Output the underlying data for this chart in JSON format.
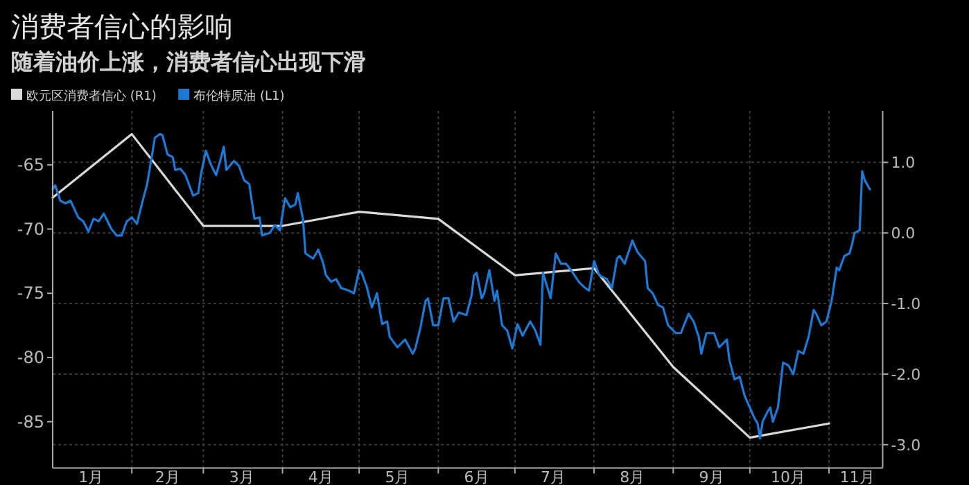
{
  "chart_data": {
    "type": "line",
    "title": "消费者信心的影响",
    "subtitle": "随着油价上涨，消费者信心出现下滑",
    "legend": "top left",
    "grid": true,
    "marker": "none",
    "line_style": "solid",
    "xlim": [
      "--01-01",
      "--11-22"
    ],
    "xticks": [
      {
        "value": "--02-01",
        "label": null
      },
      {
        "value": "--03-01",
        "label": null
      },
      {
        "value": "--04-01",
        "label": null
      },
      {
        "value": "--05-01",
        "label": null
      },
      {
        "value": "--06-01",
        "label": null
      },
      {
        "value": "--07-01",
        "label": null
      },
      {
        "value": "--08-01",
        "label": null
      },
      {
        "value": "--09-01",
        "label": null
      },
      {
        "value": "--10-01",
        "label": null
      },
      {
        "value": "--11-01",
        "label": null
      },
      {
        "value": "--01-16",
        "label": "1月"
      },
      {
        "value": "--02-15",
        "label": "2月"
      },
      {
        "value": "--03-16",
        "label": "3月"
      },
      {
        "value": "--04-16",
        "label": "4月"
      },
      {
        "value": "--05-16",
        "label": "5月"
      },
      {
        "value": "--06-16",
        "label": "6月"
      },
      {
        "value": "--07-16",
        "label": "7月"
      },
      {
        "value": "--08-16",
        "label": "8月"
      },
      {
        "value": "--09-16",
        "label": "9月"
      },
      {
        "value": "--10-16",
        "label": "10月"
      },
      {
        "value": "--11-12",
        "label": "11月"
      }
    ],
    "ylim": [
      -88.6,
      -60.8
    ],
    "yticks": [
      -65,
      -70,
      -75,
      -80,
      -85
    ],
    "y2lim": [
      -3.33,
      1.73
    ],
    "y2ticks": [
      {
        "value": 1,
        "label": "1.0"
      },
      {
        "value": 0,
        "label": "0.0"
      },
      {
        "value": -1,
        "label": "-1.0"
      },
      {
        "value": -2,
        "label": "-2.0"
      },
      {
        "value": -3,
        "label": "-3.0"
      }
    ],
    "series": [
      {
        "name": "欧元区消费者信心 (R1)",
        "color": "#d9d9d9",
        "axis": "y2",
        "x": [
          "--01-01",
          "--02-01",
          "--03-01",
          "--04-01",
          "--05-01",
          "--06-01",
          "--07-01",
          "--08-01",
          "--09-01",
          "--10-01",
          "--11-01"
        ],
        "values": [
          0.5,
          1.4,
          0.1,
          0.1,
          0.3,
          0.2,
          -0.6,
          -0.5,
          -1.9,
          -2.9,
          -2.7
        ]
      },
      {
        "name": "布伦特原油 (L1)",
        "color": "#1f78d1",
        "axis": "y",
        "x": [
          "--01-01",
          "--01-02",
          "--01-04",
          "--01-06",
          "--01-08",
          "--01-11",
          "--01-13",
          "--01-15",
          "--01-17",
          "--01-19",
          "--01-21",
          "--01-24",
          "--01-26",
          "--01-28",
          "--01-30",
          "--02-01",
          "--02-03",
          "--02-05",
          "--02-07",
          "--02-10",
          "--02-12",
          "--02-13",
          "--02-15",
          "--02-17",
          "--02-18",
          "--02-20",
          "--02-22",
          "--02-25",
          "--02-27",
          "--02-28",
          "--03-02",
          "--03-04",
          "--03-06",
          "--03-08",
          "--03-09",
          "--03-10",
          "--03-13",
          "--03-15",
          "--03-17",
          "--03-19",
          "--03-21",
          "--03-23",
          "--03-24",
          "--03-27",
          "--03-29",
          "--03-31",
          "--04-02",
          "--04-04",
          "--04-06",
          "--04-07",
          "--04-09",
          "--04-10",
          "--04-13",
          "--04-15",
          "--04-17",
          "--04-18",
          "--04-20",
          "--04-22",
          "--04-24",
          "--04-27",
          "--04-29",
          "--05-01",
          "--05-02",
          "--05-04",
          "--05-06",
          "--05-08",
          "--05-10",
          "--05-12",
          "--05-13",
          "--05-16",
          "--05-19",
          "--05-22",
          "--05-23",
          "--05-25",
          "--05-27",
          "--05-28",
          "--05-30",
          "--06-01",
          "--06-03",
          "--06-05",
          "--06-07",
          "--06-09",
          "--06-12",
          "--06-14",
          "--06-15",
          "--06-16",
          "--06-18",
          "--06-19",
          "--06-21",
          "--06-23",
          "--06-24",
          "--06-26",
          "--06-28",
          "--06-30",
          "--07-02",
          "--07-04",
          "--07-07",
          "--07-09",
          "--07-11",
          "--07-12",
          "--07-15",
          "--07-17",
          "--07-19",
          "--07-21",
          "--07-23",
          "--07-26",
          "--07-28",
          "--07-30",
          "--08-01",
          "--08-03",
          "--08-06",
          "--08-08",
          "--08-10",
          "--08-11",
          "--08-13",
          "--08-16",
          "--08-18",
          "--08-21",
          "--08-22",
          "--08-24",
          "--08-26",
          "--08-28",
          "--08-30",
          "--09-02",
          "--09-04",
          "--09-07",
          "--09-09",
          "--09-11",
          "--09-12",
          "--09-14",
          "--09-17",
          "--09-19",
          "--09-22",
          "--09-23",
          "--09-25",
          "--09-27",
          "--09-29",
          "--10-01",
          "--10-03",
          "--10-04",
          "--10-05",
          "--10-06",
          "--10-08",
          "--10-09",
          "--10-10",
          "--10-12",
          "--10-14",
          "--10-16",
          "--10-18",
          "--10-20",
          "--10-22",
          "--10-24",
          "--10-26",
          "--10-27",
          "--10-29",
          "--10-31",
          "--11-02",
          "--11-04",
          "--11-05",
          "--11-07",
          "--11-09",
          "--11-10",
          "--11-11",
          "--11-13",
          "--11-14",
          "--11-15",
          "--11-17"
        ],
        "values": [
          -66.9,
          -66.6,
          -67.8,
          -68.0,
          -67.8,
          -69.1,
          -69.4,
          -70.2,
          -69.2,
          -69.4,
          -68.8,
          -70.0,
          -70.5,
          -70.5,
          -69.4,
          -69.1,
          -69.6,
          -68.0,
          -66.5,
          -62.9,
          -62.6,
          -62.7,
          -64.2,
          -64.4,
          -65.4,
          -65.3,
          -65.8,
          -67.4,
          -67.2,
          -65.8,
          -63.9,
          -65.0,
          -65.8,
          -64.4,
          -63.6,
          -65.4,
          -64.7,
          -65.1,
          -66.2,
          -66.5,
          -69.2,
          -69.1,
          -70.5,
          -70.3,
          -69.7,
          -70.1,
          -67.6,
          -68.3,
          -68.1,
          -67.2,
          -69.2,
          -71.9,
          -72.3,
          -71.6,
          -72.7,
          -73.6,
          -74.1,
          -73.9,
          -74.6,
          -74.8,
          -75.0,
          -73.2,
          -73.4,
          -74.5,
          -76.1,
          -75.0,
          -77.4,
          -77.2,
          -78.4,
          -79.2,
          -78.6,
          -79.7,
          -79.3,
          -77.7,
          -75.6,
          -75.4,
          -77.5,
          -77.5,
          -75.4,
          -75.4,
          -77.2,
          -76.5,
          -76.7,
          -75.2,
          -73.6,
          -73.4,
          -75.4,
          -75.0,
          -73.2,
          -75.6,
          -74.8,
          -77.5,
          -77.9,
          -79.3,
          -77.4,
          -78.3,
          -77.2,
          -77.9,
          -79.0,
          -73.4,
          -75.4,
          -71.9,
          -72.7,
          -72.7,
          -73.2,
          -74.1,
          -74.5,
          -74.8,
          -72.5,
          -73.6,
          -73.9,
          -74.6,
          -72.3,
          -72.1,
          -72.7,
          -70.9,
          -71.8,
          -72.5,
          -74.6,
          -75.0,
          -75.9,
          -76.1,
          -77.5,
          -78.1,
          -78.1,
          -76.6,
          -77.2,
          -78.4,
          -79.7,
          -78.1,
          -78.1,
          -79.2,
          -78.6,
          -80.2,
          -81.7,
          -81.5,
          -83.0,
          -83.9,
          -84.8,
          -85.1,
          -86.3,
          -85.0,
          -84.2,
          -83.9,
          -85.0,
          -83.9,
          -80.4,
          -80.6,
          -81.3,
          -79.5,
          -79.7,
          -78.4,
          -76.3,
          -76.6,
          -77.5,
          -77.2,
          -75.6,
          -73.0,
          -73.2,
          -72.1,
          -71.9,
          -71.2,
          -70.3,
          -70.1,
          -65.5,
          -66.2,
          -66.9
        ]
      }
    ]
  }
}
